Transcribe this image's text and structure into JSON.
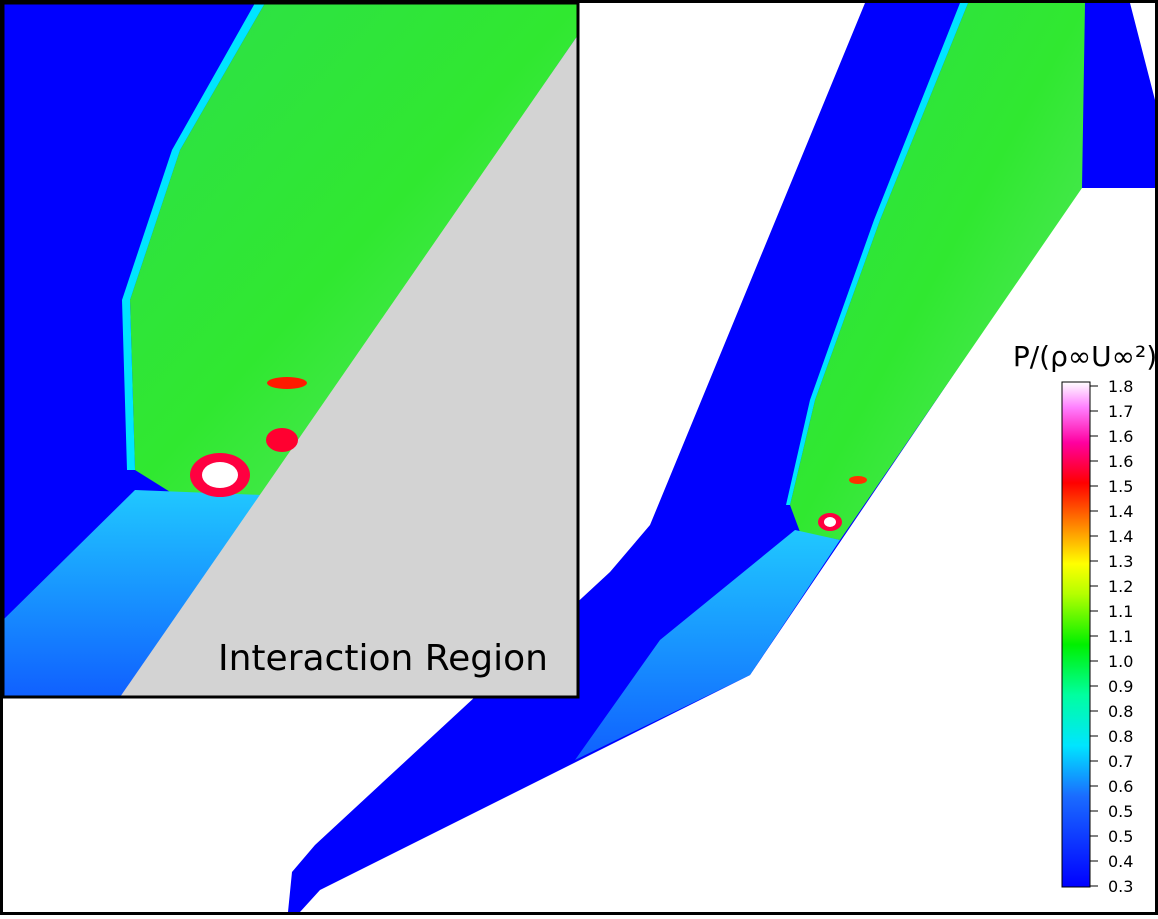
{
  "inset": {
    "label": "Interaction Region"
  },
  "colorbar": {
    "title": "P/(ρ∞U∞²)",
    "labels": [
      "1.8",
      "1.7",
      "1.6",
      "1.6",
      "1.5",
      "1.4",
      "1.4",
      "1.3",
      "1.2",
      "1.1",
      "1.1",
      "1.0",
      "0.9",
      "0.8",
      "0.8",
      "0.7",
      "0.6",
      "0.5",
      "0.5",
      "0.4",
      "0.3"
    ]
  }
}
